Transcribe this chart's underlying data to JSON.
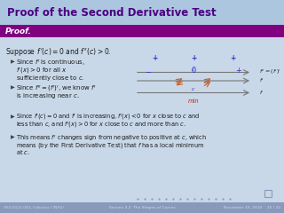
{
  "title": "Proof of the Second Derivative Test",
  "title_bg": "#ADC6E0",
  "title_color": "#4B0082",
  "slide_bg": "#C8D8E8",
  "proof_label": "Proof.",
  "proof_bg": "#800080",
  "proof_color": "#FFFFFF",
  "body_color": "#1a1a1a",
  "bullet_color": "#333333",
  "blue_color": "#3333CC",
  "arrow_color": "#CC6633",
  "red_color": "#CC2200",
  "footer_bg": "#8899BB",
  "footer_text_color": "#CCDDEE",
  "footer_left": "V63.0121.041, Calculus I (NYU)",
  "footer_mid": "Section 4.2  The Shapes of Curves",
  "footer_right": "November 15, 2010    25 / 32",
  "suppose_text": "Suppose $f\\,'(c) = 0$ and $f\\,''(c) > 0$.",
  "diag_label_top": "$f'' = (f')'$",
  "diag_label_f1": "$f'$",
  "diag_label_f2": "$f'$",
  "diag_label_f3": "$f$"
}
